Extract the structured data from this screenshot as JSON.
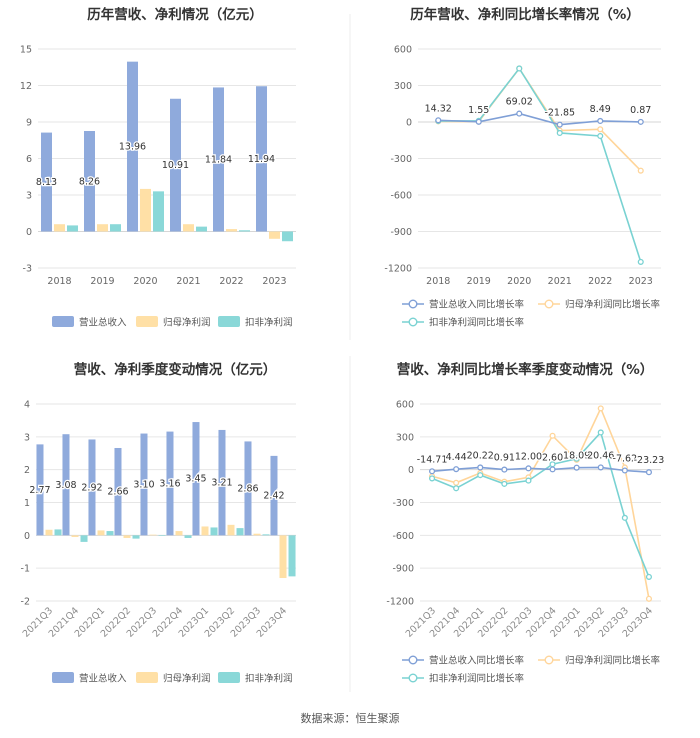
{
  "colors": {
    "revenue": "#8faadc",
    "parent": "#ffe0a6",
    "deducted": "#8ad8d8",
    "grid": "#e6e6e6",
    "axis": "#cccccc"
  },
  "source": "数据来源：恒生聚源",
  "chart_data": [
    {
      "id": "annual_amount",
      "type": "bar",
      "title": "历年营收、净利情况（亿元）",
      "categories": [
        "2018",
        "2019",
        "2020",
        "2021",
        "2022",
        "2023"
      ],
      "ylim": [
        -3,
        15
      ],
      "yticks": [
        -3,
        0,
        3,
        6,
        9,
        12,
        15
      ],
      "series": [
        {
          "name": "营业总收入",
          "values": [
            8.13,
            8.26,
            13.96,
            10.91,
            11.84,
            11.94
          ],
          "labels": [
            "8.13",
            "8.26",
            "13.96",
            "10.91",
            "11.84",
            "11.94"
          ]
        },
        {
          "name": "归母净利润",
          "values": [
            0.6,
            0.6,
            3.5,
            0.6,
            0.2,
            -0.6
          ]
        },
        {
          "name": "扣非净利润",
          "values": [
            0.5,
            0.6,
            3.3,
            0.4,
            0.1,
            -0.8
          ]
        }
      ],
      "legend": "bottom"
    },
    {
      "id": "annual_growth",
      "type": "line",
      "title": "历年营收、净利同比增长率情况（%）",
      "categories": [
        "2018",
        "2019",
        "2020",
        "2021",
        "2022",
        "2023"
      ],
      "ylim": [
        -1200,
        600
      ],
      "yticks": [
        -1200,
        -900,
        -600,
        -300,
        0,
        300,
        600
      ],
      "series": [
        {
          "name": "营业总收入同比增长率",
          "values": [
            14.32,
            1.55,
            69.02,
            -21.85,
            8.49,
            0.87
          ],
          "labels": [
            "14.32",
            "1.55",
            "69.02",
            "-21.85",
            "8.49",
            "0.87"
          ]
        },
        {
          "name": "归母净利润同比增长率",
          "values": [
            5,
            2,
            440,
            -70,
            -60,
            -400
          ]
        },
        {
          "name": "扣非净利润同比增长率",
          "values": [
            8,
            10,
            440,
            -90,
            -115,
            -1150
          ]
        }
      ],
      "legend": "bottom"
    },
    {
      "id": "quarterly_amount",
      "type": "bar",
      "title": "营收、净利季度变动情况（亿元）",
      "categories": [
        "2021Q3",
        "2021Q4",
        "2022Q1",
        "2022Q2",
        "2022Q3",
        "2022Q4",
        "2023Q1",
        "2023Q2",
        "2023Q3",
        "2023Q4"
      ],
      "ylim": [
        -2,
        4
      ],
      "yticks": [
        -2,
        -1,
        0,
        1,
        2,
        3,
        4
      ],
      "series": [
        {
          "name": "营业总收入",
          "values": [
            2.77,
            3.08,
            2.92,
            2.66,
            3.1,
            3.16,
            3.45,
            3.21,
            2.86,
            2.42
          ],
          "labels": [
            "2.77",
            "3.08",
            "2.92",
            "2.66",
            "3.10",
            "3.16",
            "3.45",
            "3.21",
            "2.86",
            "2.42"
          ]
        },
        {
          "name": "归母净利润",
          "values": [
            0.17,
            -0.05,
            0.15,
            -0.08,
            0.02,
            0.13,
            0.27,
            0.32,
            0.05,
            -1.3
          ]
        },
        {
          "name": "扣非净利润",
          "values": [
            0.18,
            -0.2,
            0.13,
            -0.1,
            0.01,
            -0.08,
            0.24,
            0.22,
            0.03,
            -1.25
          ]
        }
      ],
      "legend": "bottom"
    },
    {
      "id": "quarterly_growth",
      "type": "line",
      "title": "营收、净利同比增长率季度变动情况（%）",
      "categories": [
        "2021Q3",
        "2021Q4",
        "2022Q1",
        "2022Q2",
        "2022Q3",
        "2022Q4",
        "2023Q1",
        "2023Q2",
        "2023Q3",
        "2023Q4"
      ],
      "ylim": [
        -1200,
        600
      ],
      "yticks": [
        -1200,
        -900,
        -600,
        -300,
        0,
        300,
        600
      ],
      "series": [
        {
          "name": "营业总收入同比增长率",
          "values": [
            -14.71,
            4.44,
            20.22,
            0.91,
            12.0,
            2.6,
            18.09,
            20.46,
            -7.62,
            -23.23
          ],
          "labels": [
            "-14.71",
            "4.44",
            "20.22",
            "0.91",
            "12.00",
            "2.60",
            "18.09",
            "20.46",
            "-7.62",
            "-23.23"
          ]
        },
        {
          "name": "归母净利润同比增长率",
          "values": [
            -60,
            -120,
            -30,
            -110,
            -70,
            310,
            90,
            560,
            20,
            -1180
          ]
        },
        {
          "name": "扣非净利润同比增长率",
          "values": [
            -80,
            -170,
            -50,
            -130,
            -100,
            50,
            100,
            340,
            -440,
            -980
          ]
        }
      ],
      "legend": "bottom"
    }
  ]
}
